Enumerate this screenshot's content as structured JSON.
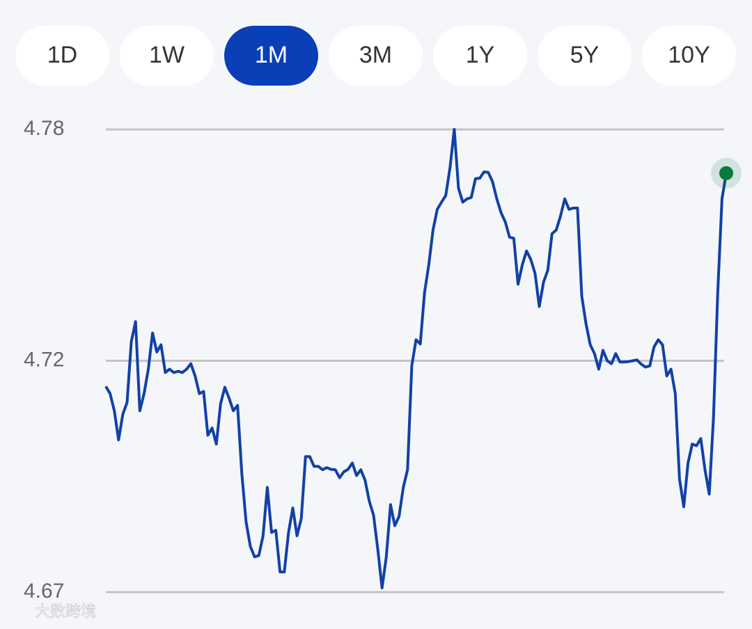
{
  "periods": {
    "options": [
      "1D",
      "1W",
      "1M",
      "3M",
      "1Y",
      "5Y",
      "10Y"
    ],
    "selected": 2,
    "selected_color": "#0a3fb8"
  },
  "chart_data": {
    "type": "line",
    "ylim": [
      4.665,
      4.775
    ],
    "yticks": [
      {
        "value": 4.775,
        "label": "4.78"
      },
      4.72,
      {
        "value": 4.665,
        "label": "4.67"
      }
    ],
    "grid": true,
    "color": "#1241a6",
    "end_marker_color": "#0a7a3c",
    "values": [
      4.7139,
      4.7122,
      4.7081,
      4.7012,
      4.7073,
      4.7101,
      4.7246,
      4.7293,
      4.7081,
      4.7122,
      4.718,
      4.7266,
      4.7221,
      4.7238,
      4.7172,
      4.718,
      4.7172,
      4.7175,
      4.7172,
      4.718,
      4.7193,
      4.7164,
      4.7122,
      4.7127,
      4.7023,
      4.704,
      4.7002,
      4.7098,
      4.7137,
      4.7111,
      4.7081,
      4.7094,
      4.6932,
      4.6817,
      4.6759,
      4.6734,
      4.6737,
      4.6784,
      4.6899,
      4.6792,
      4.6797,
      4.6698,
      4.6698,
      4.6792,
      4.685,
      4.6784,
      4.6825,
      4.6972,
      4.6972,
      4.6949,
      4.6949,
      4.6941,
      4.6946,
      4.6942,
      4.6941,
      4.6922,
      4.6936,
      4.6942,
      4.6957,
      4.6927,
      4.6941,
      4.6916,
      4.6866,
      4.6833,
      4.6751,
      4.666,
      4.6734,
      4.6858,
      4.6808,
      4.683,
      4.6899,
      4.6941,
      4.7188,
      4.725,
      4.724,
      4.7362,
      4.7428,
      4.7511,
      4.756,
      4.7577,
      4.7593,
      4.7659,
      4.775,
      4.761,
      4.7577,
      4.7585,
      4.7588,
      4.7633,
      4.7634,
      4.7649,
      4.7648,
      4.7626,
      4.7585,
      4.7552,
      4.753,
      4.7494,
      4.7491,
      4.7382,
      4.7428,
      4.7461,
      4.7441,
      4.7408,
      4.7329,
      4.7387,
      4.7415,
      4.7502,
      4.7511,
      4.7544,
      4.7585,
      4.756,
      4.7563,
      4.7563,
      4.7354,
      4.7288,
      4.7238,
      4.7217,
      4.718,
      4.7225,
      4.72,
      4.7193,
      4.7217,
      4.7197,
      4.7197,
      4.7198,
      4.72,
      4.7202,
      4.7192,
      4.7185,
      4.7188,
      4.7233,
      4.725,
      4.7238,
      4.7164,
      4.718,
      4.7122,
      4.6919,
      4.6853,
      4.6957,
      4.7002,
      4.6998,
      4.7015,
      4.6941,
      4.6883,
      4.7065,
      4.7362,
      4.7585,
      4.7646
    ]
  },
  "watermark": "大数跨境"
}
